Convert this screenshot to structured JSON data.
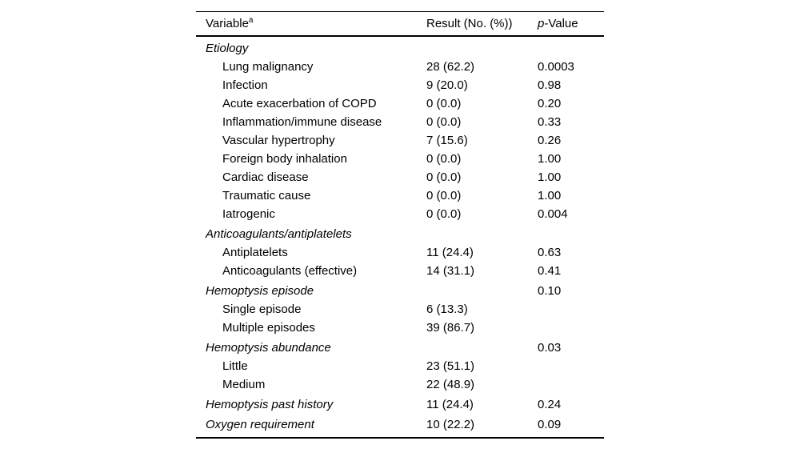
{
  "table": {
    "header": {
      "variable_label": "Variable",
      "variable_footnote_marker": "a",
      "result_label": "Result (No. (%))",
      "pvalue_italic_part": "p",
      "pvalue_rest": "-Value"
    },
    "rows": [
      {
        "label": "Etiology",
        "level": "section",
        "result": "",
        "pvalue": ""
      },
      {
        "label": "Lung malignancy",
        "level": "sub",
        "result": "28 (62.2)",
        "pvalue": "0.0003"
      },
      {
        "label": "Infection",
        "level": "sub",
        "result": "9 (20.0)",
        "pvalue": "0.98"
      },
      {
        "label": "Acute exacerbation of COPD",
        "level": "sub",
        "result": "0 (0.0)",
        "pvalue": "0.20"
      },
      {
        "label": "Inflammation/immune disease",
        "level": "sub",
        "result": "0 (0.0)",
        "pvalue": "0.33"
      },
      {
        "label": "Vascular hypertrophy",
        "level": "sub",
        "result": "7 (15.6)",
        "pvalue": "0.26"
      },
      {
        "label": "Foreign body inhalation",
        "level": "sub",
        "result": "0 (0.0)",
        "pvalue": "1.00"
      },
      {
        "label": "Cardiac disease",
        "level": "sub",
        "result": "0 (0.0)",
        "pvalue": "1.00"
      },
      {
        "label": "Traumatic cause",
        "level": "sub",
        "result": "0 (0.0)",
        "pvalue": "1.00"
      },
      {
        "label": "Iatrogenic",
        "level": "sub",
        "result": "0 (0.0)",
        "pvalue": "0.004"
      },
      {
        "label": "Anticoagulants/antiplatelets",
        "level": "section",
        "result": "",
        "pvalue": ""
      },
      {
        "label": "Antiplatelets",
        "level": "sub",
        "result": "11 (24.4)",
        "pvalue": "0.63"
      },
      {
        "label": "Anticoagulants (effective)",
        "level": "sub",
        "result": "14 (31.1)",
        "pvalue": "0.41"
      },
      {
        "label": "Hemoptysis episode",
        "level": "section",
        "result": "",
        "pvalue": "0.10"
      },
      {
        "label": "Single episode",
        "level": "sub",
        "result": "6 (13.3)",
        "pvalue": ""
      },
      {
        "label": "Multiple episodes",
        "level": "sub",
        "result": "39 (86.7)",
        "pvalue": ""
      },
      {
        "label": "Hemoptysis abundance",
        "level": "section",
        "result": "",
        "pvalue": "0.03"
      },
      {
        "label": "Little",
        "level": "sub",
        "result": "23 (51.1)",
        "pvalue": ""
      },
      {
        "label": "Medium",
        "level": "sub",
        "result": "22 (48.9)",
        "pvalue": ""
      },
      {
        "label": "Hemoptysis past history",
        "level": "section",
        "result": "11 (24.4)",
        "pvalue": "0.24"
      },
      {
        "label": "Oxygen requirement",
        "level": "section",
        "result": "10 (22.2)",
        "pvalue": "0.09"
      }
    ]
  }
}
